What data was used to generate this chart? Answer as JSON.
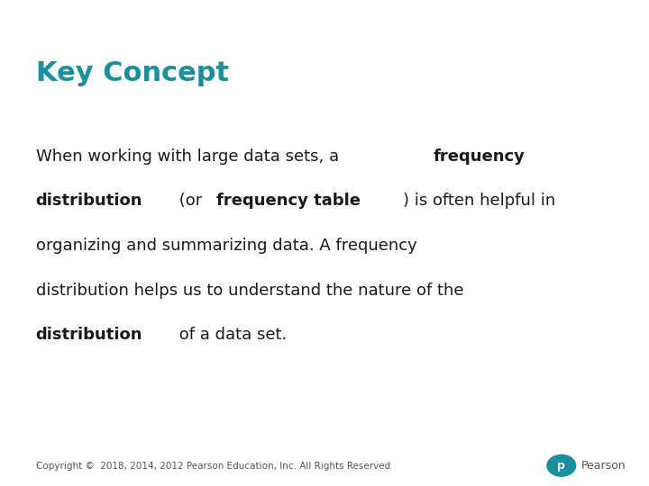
{
  "title": "Key Concept",
  "title_color": "#1a8fa0",
  "title_fontsize": 22,
  "background_color": "#ffffff",
  "text_color": "#1a1a1a",
  "body_fontsize": 13,
  "copyright_text": "Copyright ©  2018, 2014, 2012 Pearson Education, Inc. All Rights Reserved",
  "copyright_fontsize": 7.5,
  "pearson_logo_color": "#1a8fa0",
  "lines": [
    [
      [
        "When working with large data sets, a ",
        false
      ],
      [
        "frequency",
        true
      ]
    ],
    [
      [
        "distribution",
        true
      ],
      [
        " (or ",
        false
      ],
      [
        "frequency table",
        true
      ],
      [
        ") is often helpful in",
        false
      ]
    ],
    [
      [
        "organizing and summarizing data. A frequency",
        false
      ]
    ],
    [
      [
        "distribution helps us to understand the nature of the",
        false
      ]
    ],
    [
      [
        "distribution",
        true
      ],
      [
        " of a data set.",
        false
      ]
    ]
  ]
}
